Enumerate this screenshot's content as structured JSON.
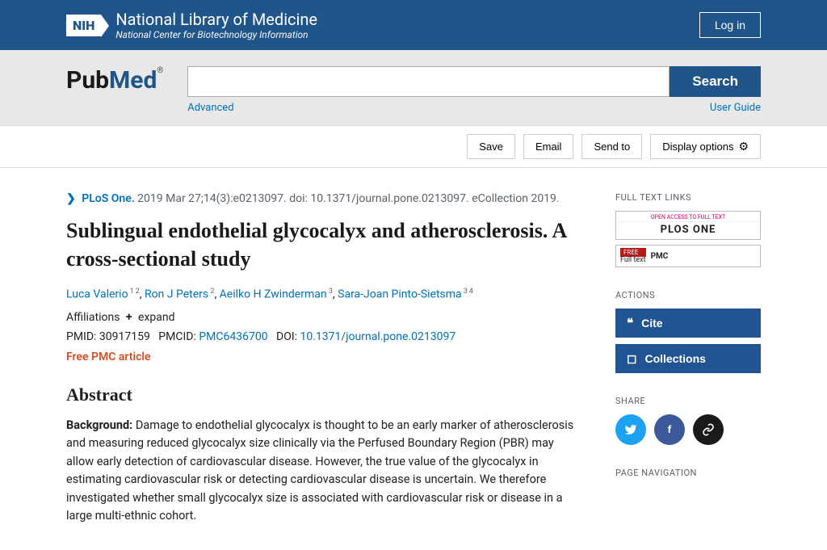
{
  "header": {
    "nih_logo": "NIH",
    "nih_title": "National Library of Medicine",
    "nih_sub": "National Center for Biotechnology Information",
    "login": "Log in"
  },
  "search": {
    "logo_pub": "Pub",
    "logo_med": "Med",
    "logo_r": "®",
    "button": "Search",
    "advanced": "Advanced",
    "guide": "User Guide"
  },
  "actions": {
    "save": "Save",
    "email": "Email",
    "send": "Send to",
    "display": "Display options"
  },
  "article": {
    "journal": "PLoS One.",
    "citation": " 2019 Mar 27;14(3):e0213097. doi: 10.1371/journal.pone.0213097. eCollection 2019.",
    "title": "Sublingual endothelial glycocalyx and atherosclerosis. A cross-sectional study",
    "authors_html": "Luca Valerio|1 2|, Ron J Peters|2|, Aeilko H Zwinderman|3|, Sara-Joan Pinto-Sietsma|3 4",
    "affil_label": "Affiliations",
    "affil_expand": "expand",
    "pmid_label": "PMID: ",
    "pmid": "30917159",
    "pmcid_label": "PMCID: ",
    "pmcid": "PMC6436700",
    "doi_label": "DOI: ",
    "doi": "10.1371/journal.pone.0213097",
    "free": "Free PMC article",
    "abstract_head": "Abstract",
    "bg_label": "Background: ",
    "bg_text": "Damage to endothelial glycocalyx is thought to be an early marker of atherosclerosis and measuring reduced glycocalyx size clinically via the Perfused Boundary Region (PBR) may allow early detection of cardiovascular disease. However, the true value of the glycocalyx in estimating cardiovascular risk or detecting cardiovascular disease is uncertain. We therefore investigated whether small glycocalyx size is associated with cardiovascular risk or disease in a large multi-ethnic cohort."
  },
  "sidebar": {
    "fulltext_head": "FULL TEXT LINKS",
    "plos_top": "OPEN ACCESS TO FULL TEXT",
    "plos_name": "PLOS ONE",
    "pmc_free": "FREE",
    "pmc_txt": "Full text",
    "pmc_name": "PMC",
    "actions_head": "ACTIONS",
    "cite": "Cite",
    "collections": "Collections",
    "share_head": "SHARE",
    "nav_head": "PAGE NAVIGATION"
  }
}
